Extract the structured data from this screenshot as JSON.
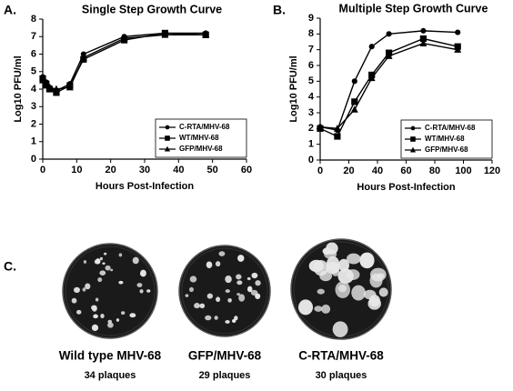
{
  "chart_data": [
    {
      "type": "line",
      "panel_label": "A.",
      "title": "Single Step Growth Curve",
      "x_label": "Hours Post-Infection",
      "y_label": "Log10 PFU/ml",
      "x": [
        0,
        1,
        2,
        4,
        8,
        12,
        24,
        36,
        48
      ],
      "xlim": [
        0,
        60
      ],
      "xticks": [
        0,
        10,
        20,
        30,
        40,
        50,
        60
      ],
      "ylim": [
        0,
        8
      ],
      "yticks": [
        0,
        1,
        2,
        3,
        4,
        5,
        6,
        7,
        8
      ],
      "legend": "lower right",
      "series": [
        {
          "name": "C-RTA/MHV-68",
          "color": "#000000",
          "marker": "circle",
          "values": [
            4.7,
            4.4,
            4.1,
            3.9,
            4.3,
            6.0,
            7.0,
            7.2,
            7.2
          ]
        },
        {
          "name": "WT/MHV-68",
          "color": "#000000",
          "marker": "square",
          "values": [
            4.6,
            4.3,
            4.0,
            3.8,
            4.2,
            5.7,
            6.8,
            7.2,
            7.1
          ]
        },
        {
          "name": "GFP/MHV-68",
          "color": "#000000",
          "marker": "triangle",
          "values": [
            4.5,
            4.2,
            4.1,
            4.0,
            4.1,
            5.8,
            6.9,
            7.1,
            7.1
          ]
        }
      ]
    },
    {
      "type": "line",
      "panel_label": "B.",
      "title": "Multiple Step Growth Curve",
      "x_label": "Hours Post-Infection",
      "y_label": "Log10 PFU/ml",
      "x": [
        0,
        12,
        24,
        36,
        48,
        72,
        96
      ],
      "xlim": [
        0,
        120
      ],
      "xticks": [
        0,
        20,
        40,
        60,
        80,
        100,
        120
      ],
      "ylim": [
        0,
        9
      ],
      "yticks": [
        0,
        1,
        2,
        3,
        4,
        5,
        6,
        7,
        8,
        9
      ],
      "legend": "lower right",
      "series": [
        {
          "name": "C-RTA/MHV-68",
          "color": "#000000",
          "marker": "circle",
          "values": [
            2.1,
            1.9,
            5.0,
            7.2,
            8.0,
            8.2,
            8.1
          ]
        },
        {
          "name": "WT/MHV-68",
          "color": "#000000",
          "marker": "square",
          "values": [
            2.0,
            1.5,
            3.7,
            5.4,
            6.8,
            7.7,
            7.2
          ]
        },
        {
          "name": "GFP/MHV-68",
          "color": "#000000",
          "marker": "triangle",
          "values": [
            2.1,
            2.0,
            3.2,
            5.2,
            6.6,
            7.4,
            7.0
          ]
        }
      ]
    }
  ],
  "plaque_panel": {
    "panel_label": "C.",
    "plates": [
      {
        "label": "Wild type MHV-68",
        "count": "34 plaques"
      },
      {
        "label": "GFP/MHV-68",
        "count": "29 plaques"
      },
      {
        "label": "C-RTA/MHV-68",
        "count": "30 plaques"
      }
    ]
  }
}
